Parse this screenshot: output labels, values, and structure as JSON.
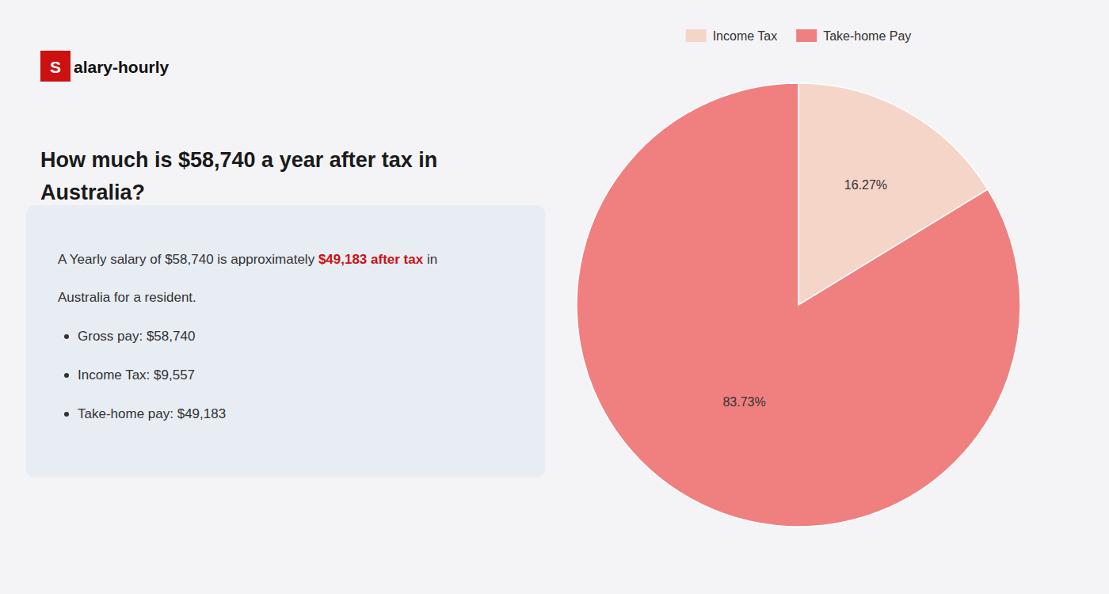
{
  "chart_data": {
    "type": "pie",
    "title": "How much is $58,740 a year after tax in\nAustralia?",
    "categories": [
      "Income Tax",
      "Take-home Pay"
    ],
    "values": [
      16.27,
      83.73
    ],
    "value_labels": [
      "16.27%",
      "83.73%"
    ],
    "colors": [
      "#f5d5c8",
      "#f08080"
    ],
    "data_labels": true,
    "legend": "top",
    "annotations": [
      {
        "text": "S",
        "color": "#cc1111"
      },
      {
        "text": "alary-hourly"
      },
      {
        "text": "A Yearly salary of $58,740 is approximately "
      },
      {
        "text": "$49,183 after tax",
        "color": "#cc1111"
      },
      {
        "text": " in"
      },
      {
        "text": "Australia for a resident."
      },
      {
        "text": "Gross pay: $58,740"
      },
      {
        "text": "Income Tax: $9,557"
      },
      {
        "text": "Take-home pay: $49,183"
      }
    ]
  }
}
